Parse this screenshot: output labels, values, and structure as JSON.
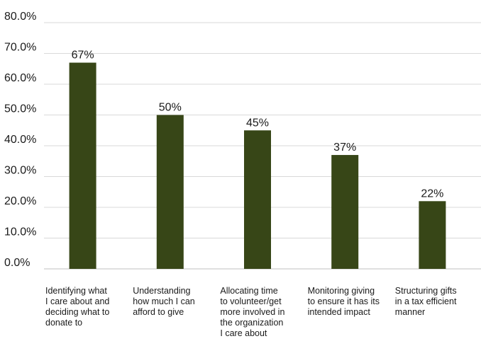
{
  "chart_data": {
    "type": "bar",
    "categories": [
      [
        "Identifying what",
        "I care about and",
        "deciding what to",
        "donate to"
      ],
      [
        "Understanding",
        "how much I can",
        "afford to give"
      ],
      [
        "Allocating time",
        "to volunteer/get",
        "more involved in",
        "the organization",
        "I care about"
      ],
      [
        "Monitoring giving",
        "to ensure it has its",
        "intended impact"
      ],
      [
        "Structuring gifts",
        "in a tax efficient",
        "manner"
      ]
    ],
    "values": [
      67,
      50,
      45,
      37,
      22
    ],
    "data_labels": [
      "67%",
      "50%",
      "45%",
      "37%",
      "22%"
    ],
    "yticks": [
      "0.0%",
      "10.0%",
      "20.0%",
      "30.0%",
      "40.0%",
      "50.0%",
      "60.0%",
      "70.0%",
      "80.0%"
    ],
    "ylim": [
      0,
      80
    ],
    "grid": true,
    "bar_color": "#374617"
  }
}
